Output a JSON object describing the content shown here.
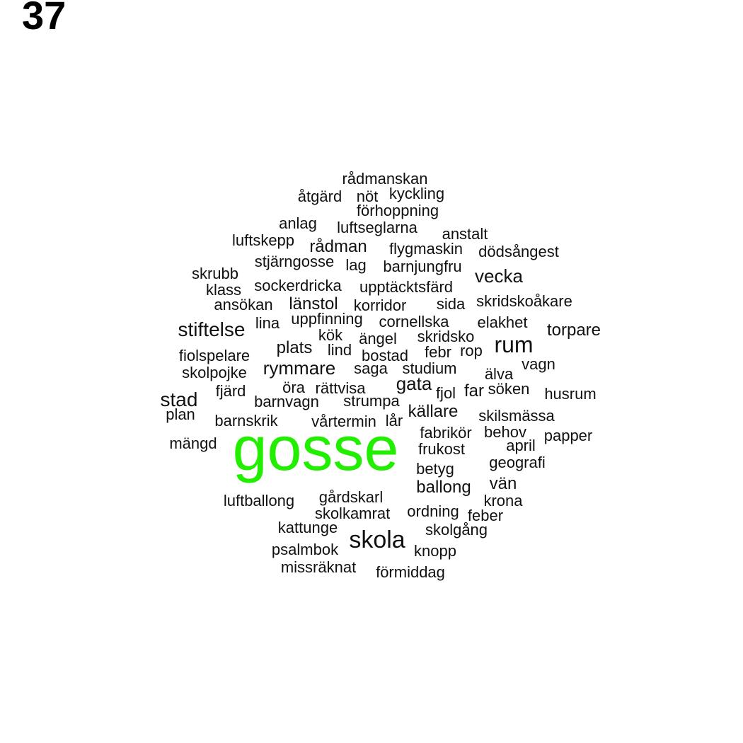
{
  "panel_label": "37",
  "highlight_color": "#22ee00",
  "text_color": "#111111",
  "words": [
    {
      "text": "rådmanskan"
    },
    {
      "text": "åtgärd"
    },
    {
      "text": "nöt"
    },
    {
      "text": "kyckling"
    },
    {
      "text": "förhoppning"
    },
    {
      "text": "anlag"
    },
    {
      "text": "luftseglarna"
    },
    {
      "text": "anstalt"
    },
    {
      "text": "luftskepp"
    },
    {
      "text": "rådman"
    },
    {
      "text": "flygmaskin"
    },
    {
      "text": "dödsångest"
    },
    {
      "text": "stjärngosse"
    },
    {
      "text": "lag"
    },
    {
      "text": "barnjungfru"
    },
    {
      "text": "skrubb"
    },
    {
      "text": "vecka"
    },
    {
      "text": "klass"
    },
    {
      "text": "sockerdricka"
    },
    {
      "text": "upptäcktsfärd"
    },
    {
      "text": "ansökan"
    },
    {
      "text": "länstol"
    },
    {
      "text": "korridor"
    },
    {
      "text": "sida"
    },
    {
      "text": "skridskoåkare"
    },
    {
      "text": "stiftelse"
    },
    {
      "text": "lina"
    },
    {
      "text": "uppfinning"
    },
    {
      "text": "cornellska"
    },
    {
      "text": "elakhet"
    },
    {
      "text": "torpare"
    },
    {
      "text": "kök"
    },
    {
      "text": "ängel"
    },
    {
      "text": "skridsko"
    },
    {
      "text": "rum"
    },
    {
      "text": "fiolspelare"
    },
    {
      "text": "plats"
    },
    {
      "text": "lind"
    },
    {
      "text": "bostad"
    },
    {
      "text": "febr"
    },
    {
      "text": "rop"
    },
    {
      "text": "skolpojke"
    },
    {
      "text": "rymmare"
    },
    {
      "text": "saga"
    },
    {
      "text": "studium"
    },
    {
      "text": "älva"
    },
    {
      "text": "vagn"
    },
    {
      "text": "fjärd"
    },
    {
      "text": "öra"
    },
    {
      "text": "rättvisa"
    },
    {
      "text": "gata"
    },
    {
      "text": "fjol"
    },
    {
      "text": "far"
    },
    {
      "text": "söken"
    },
    {
      "text": "husrum"
    },
    {
      "text": "stad"
    },
    {
      "text": "barnvagn"
    },
    {
      "text": "strumpa"
    },
    {
      "text": "källare"
    },
    {
      "text": "plan"
    },
    {
      "text": "skilsmässa"
    },
    {
      "text": "barnskrik"
    },
    {
      "text": "vårtermin"
    },
    {
      "text": "lår"
    },
    {
      "text": "fabrikör"
    },
    {
      "text": "behov"
    },
    {
      "text": "papper"
    },
    {
      "text": "mängd"
    },
    {
      "text": "gosse"
    },
    {
      "text": "april"
    },
    {
      "text": "frukost"
    },
    {
      "text": "geografi"
    },
    {
      "text": "betyg"
    },
    {
      "text": "ballong"
    },
    {
      "text": "vän"
    },
    {
      "text": "gårdskarl"
    },
    {
      "text": "luftballong"
    },
    {
      "text": "krona"
    },
    {
      "text": "skolkamrat"
    },
    {
      "text": "ordning"
    },
    {
      "text": "feber"
    },
    {
      "text": "kattunge"
    },
    {
      "text": "skolgång"
    },
    {
      "text": "skola"
    },
    {
      "text": "psalmbok"
    },
    {
      "text": "knopp"
    },
    {
      "text": "missräknat"
    },
    {
      "text": "förmiddag"
    }
  ]
}
